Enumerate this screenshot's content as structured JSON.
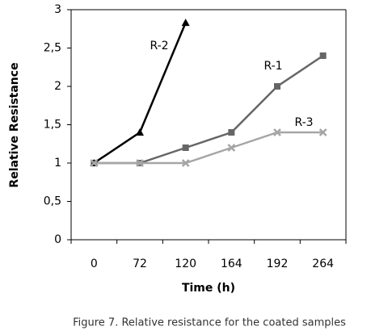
{
  "chart_data": {
    "type": "line",
    "caption": "Figure 7. Relative resistance for the coated samples",
    "x_label": "Time  (h)",
    "y_label": "Relative Resistance",
    "categories": [
      "0",
      "72",
      "120",
      "164",
      "192",
      "264"
    ],
    "series": [
      {
        "name": "R-1",
        "color": "#666666",
        "marker": "square",
        "values": [
          1,
          1,
          1.2,
          1.4,
          2,
          2.4
        ]
      },
      {
        "name": "R-2",
        "color": "#000000",
        "marker": "triangle",
        "values": [
          1,
          1.4,
          2.83,
          null,
          null,
          null
        ]
      },
      {
        "name": "R-3",
        "color": "#a6a6a6",
        "marker": "x",
        "values": [
          1,
          1,
          1,
          1.2,
          1.4,
          1.4
        ]
      }
    ],
    "ylim": [
      0,
      3
    ],
    "yticks": [
      0,
      {
        "value": 0.5,
        "label": "0,5"
      },
      1,
      {
        "value": 1.5,
        "label": "1,5"
      },
      2,
      {
        "value": 2.5,
        "label": "2,5"
      },
      3
    ],
    "grid": false
  }
}
